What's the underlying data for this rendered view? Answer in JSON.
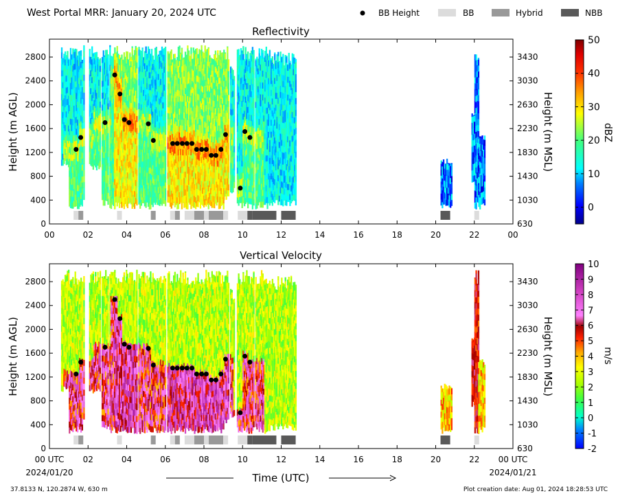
{
  "header": {
    "title": "West Portal MRR:  January 20, 2024 UTC",
    "legend": [
      {
        "label": "BB Height",
        "kind": "dot",
        "color": "#000000"
      },
      {
        "label": "BB",
        "kind": "box",
        "color": "#dcdcdc"
      },
      {
        "label": "Hybrid",
        "kind": "box",
        "color": "#999999"
      },
      {
        "label": "NBB",
        "kind": "box",
        "color": "#595959"
      }
    ]
  },
  "footer": {
    "location": "37.8133 N, 120.2874 W, 630 m",
    "creation": "Plot creation date: Aug 01, 2024 18:28:53 UTC",
    "xlabel": "Time (UTC)",
    "start_day": "00 UTC",
    "start_date": "2024/01/20",
    "end_day": "00 UTC",
    "end_date": "2024/01/21"
  },
  "chart_data": [
    {
      "type": "heatmap",
      "title": "Reflectivity",
      "ylabel": "Height (m AGL)",
      "y2label": "Height (m MSL)",
      "colorbar_label": "dBZ",
      "xlim": [
        0,
        24
      ],
      "ylim": [
        0,
        3100
      ],
      "x_ticks": [
        "00",
        "02",
        "04",
        "06",
        "08",
        "10",
        "12",
        "14",
        "16",
        "18",
        "20",
        "22",
        "00"
      ],
      "y_ticks": [
        0,
        400,
        800,
        1200,
        1600,
        2000,
        2400,
        2800
      ],
      "y2_ticks": [
        630,
        1030,
        1430,
        1830,
        2230,
        2630,
        3030,
        3430
      ],
      "colorbar_range": [
        -5,
        50
      ],
      "colorbar_ticks": [
        0,
        10,
        20,
        30,
        40,
        50
      ],
      "variable": "reflectivity"
    },
    {
      "type": "heatmap",
      "title": "Vertical Velocity",
      "ylabel": "Height (m AGL)",
      "y2label": "Height (m MSL)",
      "colorbar_label": "m/s",
      "xlim": [
        0,
        24
      ],
      "ylim": [
        0,
        3100
      ],
      "x_ticks": [
        "00 UTC",
        "02",
        "04",
        "06",
        "08",
        "10",
        "12",
        "14",
        "16",
        "18",
        "20",
        "22",
        "00 UTC"
      ],
      "y_ticks": [
        0,
        400,
        800,
        1200,
        1600,
        2000,
        2400,
        2800
      ],
      "y2_ticks": [
        630,
        1030,
        1430,
        1830,
        2230,
        2630,
        3030,
        3430
      ],
      "colorbar_range": [
        -2,
        10
      ],
      "colorbar_ticks": [
        -2,
        -1,
        0,
        1,
        2,
        3,
        4,
        5,
        6,
        7,
        8,
        9,
        10
      ],
      "variable": "vertical_velocity"
    }
  ],
  "bb_height": [
    {
      "t": 1.38,
      "h": 1250
    },
    {
      "t": 1.62,
      "h": 1450
    },
    {
      "t": 2.88,
      "h": 1700
    },
    {
      "t": 3.38,
      "h": 2500
    },
    {
      "t": 3.65,
      "h": 2180
    },
    {
      "t": 3.88,
      "h": 1750
    },
    {
      "t": 4.12,
      "h": 1700
    },
    {
      "t": 5.12,
      "h": 1680
    },
    {
      "t": 5.38,
      "h": 1400
    },
    {
      "t": 6.38,
      "h": 1350
    },
    {
      "t": 6.62,
      "h": 1350
    },
    {
      "t": 6.88,
      "h": 1350
    },
    {
      "t": 7.12,
      "h": 1350
    },
    {
      "t": 7.38,
      "h": 1350
    },
    {
      "t": 7.62,
      "h": 1250
    },
    {
      "t": 7.88,
      "h": 1250
    },
    {
      "t": 8.12,
      "h": 1250
    },
    {
      "t": 8.38,
      "h": 1150
    },
    {
      "t": 8.62,
      "h": 1150
    },
    {
      "t": 8.88,
      "h": 1250
    },
    {
      "t": 9.12,
      "h": 1500
    },
    {
      "t": 9.88,
      "h": 600
    },
    {
      "t": 10.12,
      "h": 1550
    },
    {
      "t": 10.38,
      "h": 1450
    }
  ],
  "bb_class": [
    {
      "t0": 1.25,
      "t1": 1.5,
      "c": "BB"
    },
    {
      "t0": 1.5,
      "t1": 1.75,
      "c": "Hybrid"
    },
    {
      "t0": 3.5,
      "t1": 3.75,
      "c": "BB"
    },
    {
      "t0": 5.25,
      "t1": 5.5,
      "c": "Hybrid"
    },
    {
      "t0": 6.25,
      "t1": 6.5,
      "c": "BB"
    },
    {
      "t0": 6.5,
      "t1": 6.75,
      "c": "Hybrid"
    },
    {
      "t0": 7.0,
      "t1": 7.5,
      "c": "BB"
    },
    {
      "t0": 7.5,
      "t1": 8.0,
      "c": "Hybrid"
    },
    {
      "t0": 8.0,
      "t1": 8.25,
      "c": "BB"
    },
    {
      "t0": 8.25,
      "t1": 9.0,
      "c": "Hybrid"
    },
    {
      "t0": 9.0,
      "t1": 9.25,
      "c": "BB"
    },
    {
      "t0": 9.75,
      "t1": 10.25,
      "c": "BB"
    },
    {
      "t0": 10.25,
      "t1": 10.5,
      "c": "NBB"
    },
    {
      "t0": 10.5,
      "t1": 11.75,
      "c": "NBB"
    },
    {
      "t0": 12.0,
      "t1": 12.75,
      "c": "NBB"
    },
    {
      "t0": 20.25,
      "t1": 20.75,
      "c": "NBB"
    },
    {
      "t0": 22.0,
      "t1": 22.25,
      "c": "BB"
    }
  ],
  "colors": {
    "bb": "#dcdcdc",
    "hybrid": "#999999",
    "nbb": "#595959",
    "dot": "#000000"
  }
}
